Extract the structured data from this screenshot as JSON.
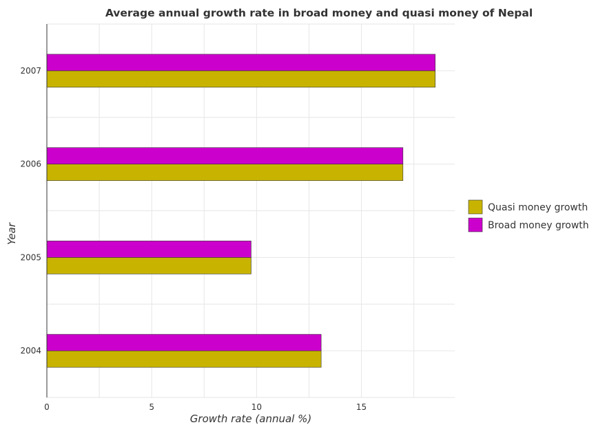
{
  "chart_data": {
    "type": "bar",
    "orientation": "horizontal",
    "title": "Average annual growth rate in broad money and quasi money of Nepal",
    "xlabel": "Growth rate (annual %)",
    "ylabel": "Year",
    "categories": [
      "2004",
      "2005",
      "2006",
      "2007"
    ],
    "series": [
      {
        "name": "Quasi money growth",
        "color": "#c8b400",
        "values": [
          13.08,
          9.74,
          16.98,
          18.52
        ]
      },
      {
        "name": "Broad money growth",
        "color": "#cc00cc",
        "values": [
          13.08,
          9.74,
          16.98,
          18.52
        ]
      }
    ],
    "xlim": [
      0,
      19.45
    ],
    "xticks": [
      0,
      5,
      10,
      15
    ],
    "grid": true,
    "legend_position": "right"
  }
}
